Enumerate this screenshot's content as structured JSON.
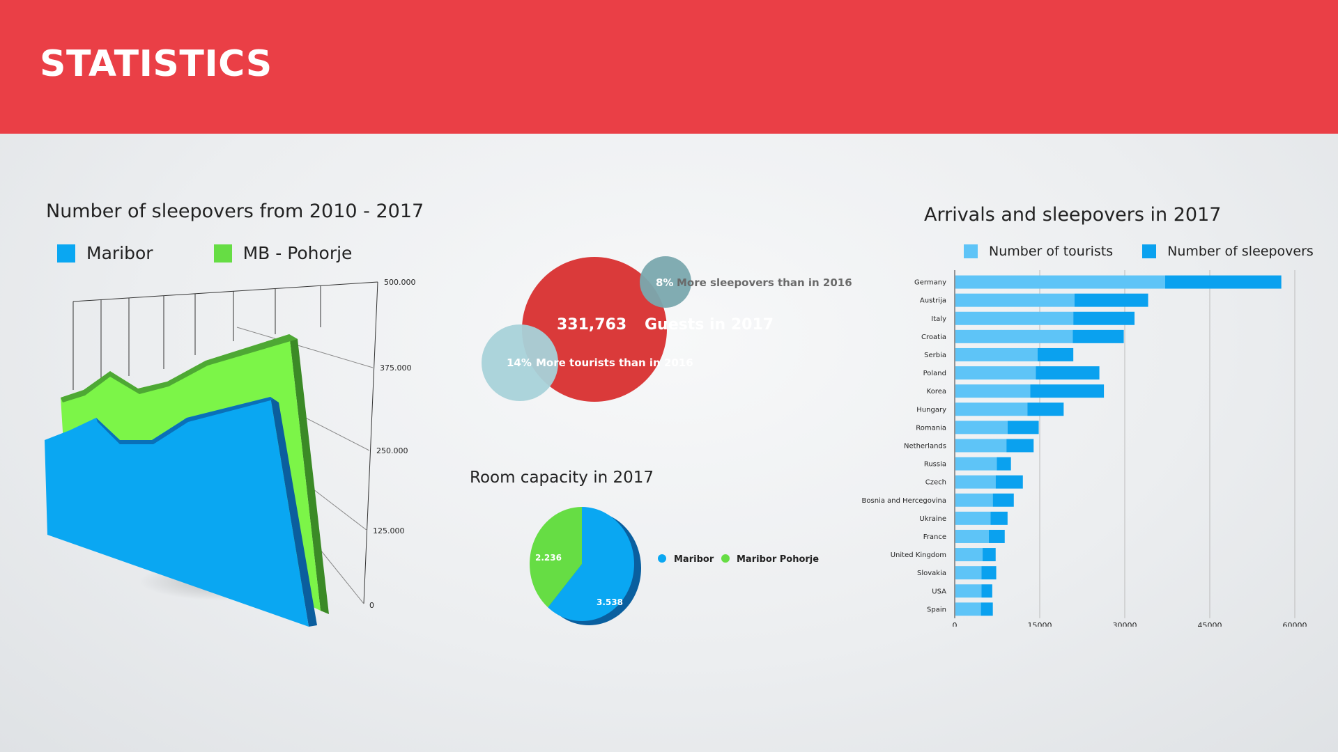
{
  "header": {
    "title": "STATISTICS"
  },
  "colors": {
    "header": "#ea3f46",
    "maribor": "#0aa7f2",
    "pohorje": "#66dd44",
    "tourists": "#5ec4f7",
    "sleepovers": "#0aa1ef",
    "bubble_main": "#da3a3a",
    "bubble_sleep": "#7aa8ae",
    "bubble_tour": "#a8d2d9"
  },
  "chart_data": [
    {
      "id": "area",
      "type": "area",
      "title": "Number  of sleepovers from 2010 - 2017",
      "legend": [
        "Maribor",
        "MB - Pohorje"
      ],
      "y_ticks": [
        "500.000",
        "375.000",
        "250.000",
        "125.000",
        "0"
      ],
      "ylim": [
        0,
        500000
      ],
      "series": [
        {
          "name": "Maribor",
          "values": [
            270000,
            300000,
            290000,
            280000,
            310000,
            320000,
            330000,
            350000
          ]
        },
        {
          "name": "MB - Pohorje",
          "values": [
            310000,
            330000,
            340000,
            350000,
            360000,
            380000,
            395000,
            410000
          ]
        }
      ]
    },
    {
      "id": "bubbles",
      "type": "bubble",
      "main_value": "331,763",
      "main_label": "Guests in 2017",
      "sleepovers_pct": "8%",
      "sleepovers_label": "More sleepovers than in 2016",
      "tourists_pct": "14%",
      "tourists_label": "More tourists than in 2016"
    },
    {
      "id": "pie",
      "type": "pie",
      "title": "Room capacity in 2017",
      "legend": [
        "Maribor",
        "Maribor Pohorje"
      ],
      "values": [
        3538,
        2236
      ],
      "value_labels": [
        "3.538",
        "2.236"
      ]
    },
    {
      "id": "bars",
      "type": "bar",
      "title": "Arrivals and sleepovers in 2017",
      "legend": [
        "Number of tourists",
        "Number of sleepovers"
      ],
      "x_ticks": [
        "0",
        "15000",
        "30000",
        "45000",
        "60000"
      ],
      "xlim": [
        0,
        60000
      ],
      "categories": [
        "Germany",
        "Austrija",
        "Italy",
        "Croatia",
        "Serbia",
        "Poland",
        "Korea",
        "Hungary",
        "Romania",
        "Netherlands",
        "Russia",
        "Czech",
        "Bosnia and Hercegovina",
        "Ukraine",
        "France",
        "United Kingdom",
        "Slovakia",
        "USA",
        "Spain"
      ],
      "series": [
        {
          "name": "Number of tourists",
          "values": [
            37000,
            21000,
            20800,
            20700,
            14500,
            14200,
            13200,
            12700,
            9200,
            9000,
            7300,
            7100,
            6600,
            6200,
            5900,
            4800,
            4600,
            4600,
            4500
          ]
        },
        {
          "name": "Number of sleepovers",
          "values": [
            20500,
            13000,
            10800,
            9000,
            6300,
            11200,
            13000,
            6400,
            5500,
            4800,
            2500,
            4800,
            3700,
            3000,
            2800,
            2300,
            2600,
            1900,
            2100
          ]
        }
      ]
    }
  ]
}
